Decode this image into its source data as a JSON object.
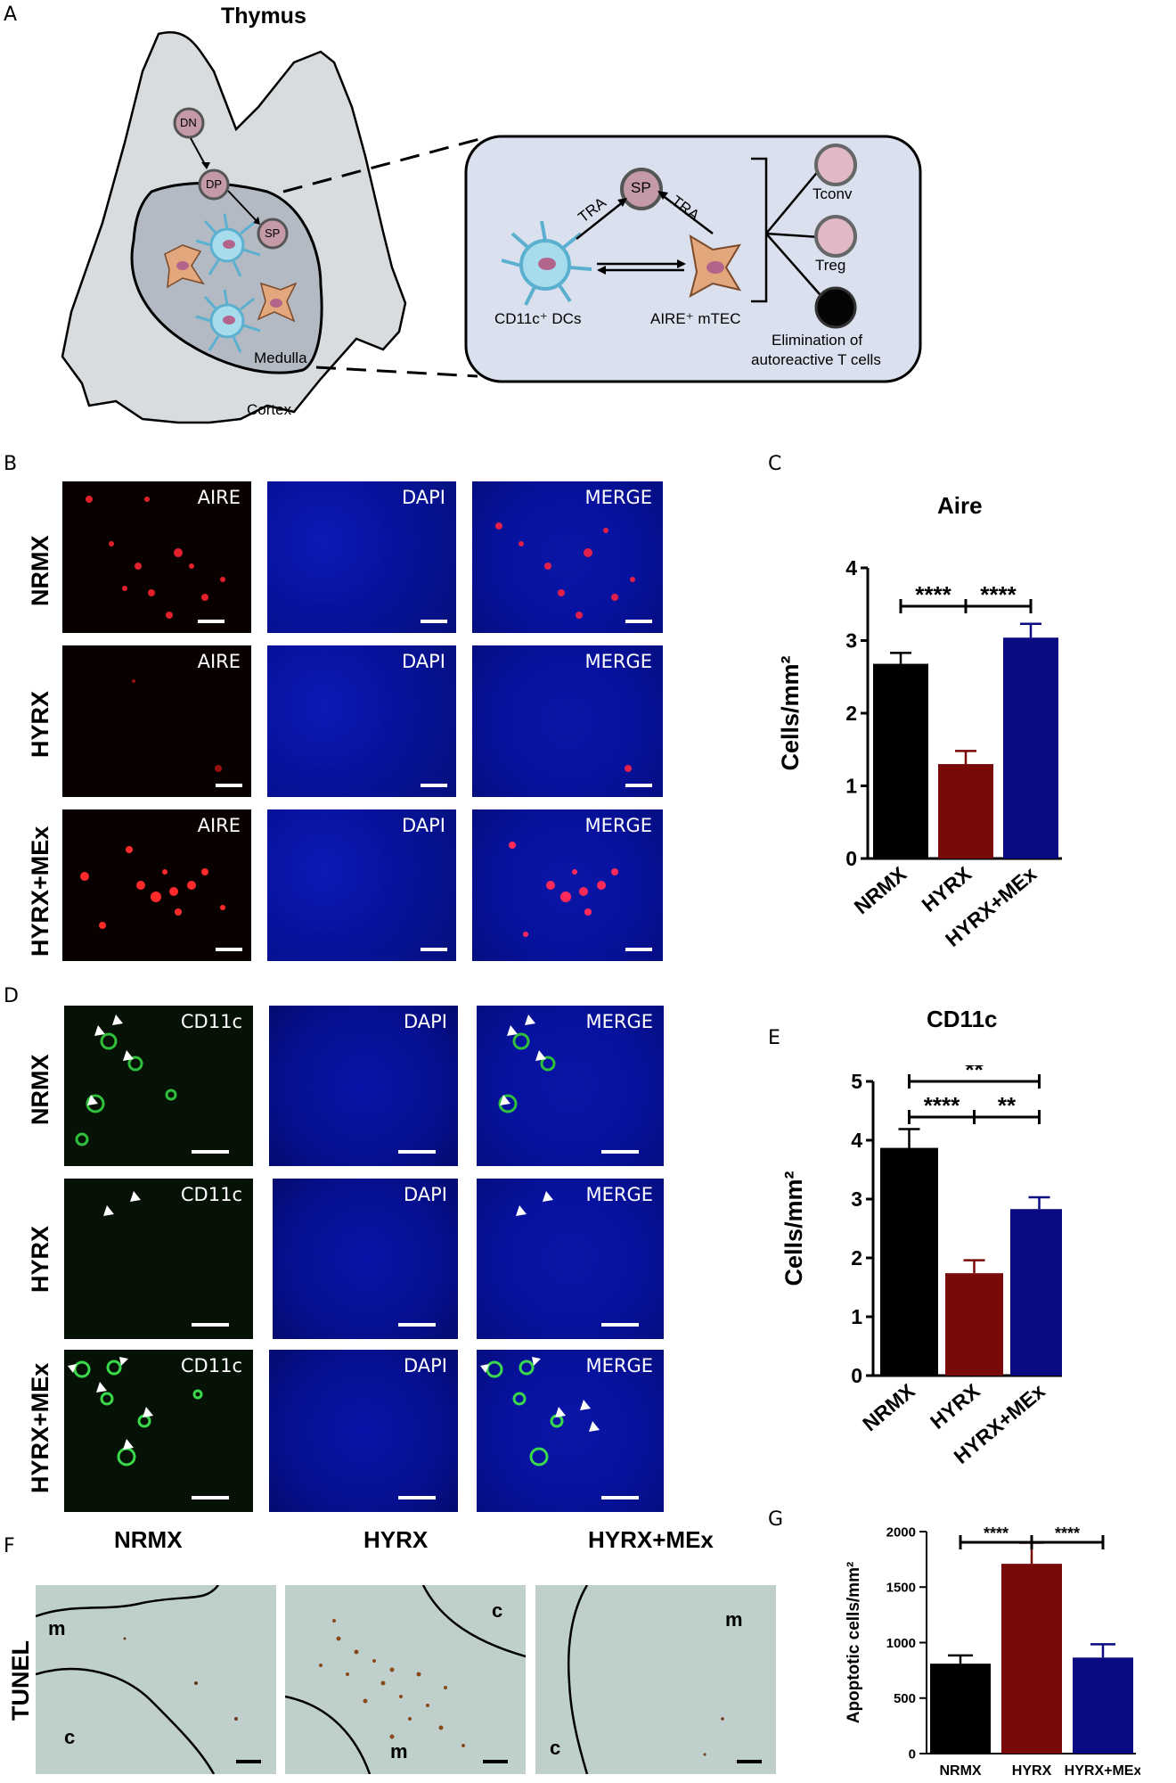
{
  "panels": {
    "A": "A",
    "B": "B",
    "C": "C",
    "D": "D",
    "E": "E",
    "F": "F",
    "G": "G"
  },
  "diagram": {
    "thymus_title": "Thymus",
    "dn": "DN",
    "dp": "DP",
    "sp": "SP",
    "medulla": "Medulla",
    "cortex": "Cortex",
    "inset": {
      "sp": "SP",
      "tra1": "TRA",
      "tra2": "TRA",
      "dc_label": "CD11c⁺ DCs",
      "mtec_label": "AIRE⁺ mTEC",
      "tconv": "Tconv",
      "treg": "Treg",
      "elim_line1": "Elimination of",
      "elim_line2": "autoreactive T cells"
    }
  },
  "panel_b": {
    "rows": [
      "NRMX",
      "HYRX",
      "HYRX+MEx"
    ],
    "cols": [
      "AIRE",
      "DAPI",
      "MERGE"
    ]
  },
  "panel_d": {
    "rows": [
      "NRMX",
      "HYRX",
      "HYRX+MEx"
    ],
    "cols": [
      "CD11c",
      "DAPI",
      "MERGE"
    ]
  },
  "panel_f": {
    "side": "TUNEL",
    "cols": [
      "NRMX",
      "HYRX",
      "HYRX+MEx"
    ],
    "region_labels": {
      "m": "m",
      "c": "c"
    }
  },
  "chart_data": [
    {
      "type": "bar",
      "title": "Aire",
      "ylabel": "Cells/mm²",
      "categories": [
        "NRMX",
        "HYRX",
        "HYRX+MEx"
      ],
      "values": [
        2.68,
        1.3,
        3.04
      ],
      "errors": [
        0.15,
        0.18,
        0.19
      ],
      "colors": [
        "#000000",
        "#7a0a0a",
        "#0a0a82"
      ],
      "ylim": [
        0,
        4
      ],
      "yticks": [
        "0",
        "1",
        "2",
        "3",
        "4"
      ],
      "significance": [
        {
          "from": 0,
          "to": 1,
          "label": "****"
        },
        {
          "from": 1,
          "to": 2,
          "label": "****"
        }
      ]
    },
    {
      "type": "bar",
      "title": "CD11c",
      "ylabel": "Cells/mm²",
      "categories": [
        "NRMX",
        "HYRX",
        "HYRX+MEx"
      ],
      "values": [
        3.87,
        1.74,
        2.83
      ],
      "errors": [
        0.32,
        0.22,
        0.2
      ],
      "colors": [
        "#000000",
        "#7a0a0a",
        "#0a0a82"
      ],
      "ylim": [
        0,
        5
      ],
      "yticks": [
        "0",
        "1",
        "2",
        "3",
        "4",
        "5"
      ],
      "significance": [
        {
          "from": 0,
          "to": 2,
          "label": "**"
        },
        {
          "from": 0,
          "to": 1,
          "label": "****"
        },
        {
          "from": 1,
          "to": 2,
          "label": "**"
        }
      ]
    },
    {
      "type": "bar",
      "title": "",
      "ylabel": "Apoptotic cells/mm²",
      "categories": [
        "NRMX",
        "HYRX",
        "HYRX+MEx"
      ],
      "values": [
        810,
        1710,
        865
      ],
      "errors": [
        75,
        190,
        120
      ],
      "colors": [
        "#000000",
        "#7a0a0a",
        "#0a0a82"
      ],
      "ylim": [
        0,
        2000
      ],
      "yticks": [
        "0",
        "500",
        "1000",
        "1500",
        "2000"
      ],
      "significance": [
        {
          "from": 0,
          "to": 1,
          "label": "****"
        },
        {
          "from": 1,
          "to": 2,
          "label": "****"
        }
      ]
    }
  ]
}
